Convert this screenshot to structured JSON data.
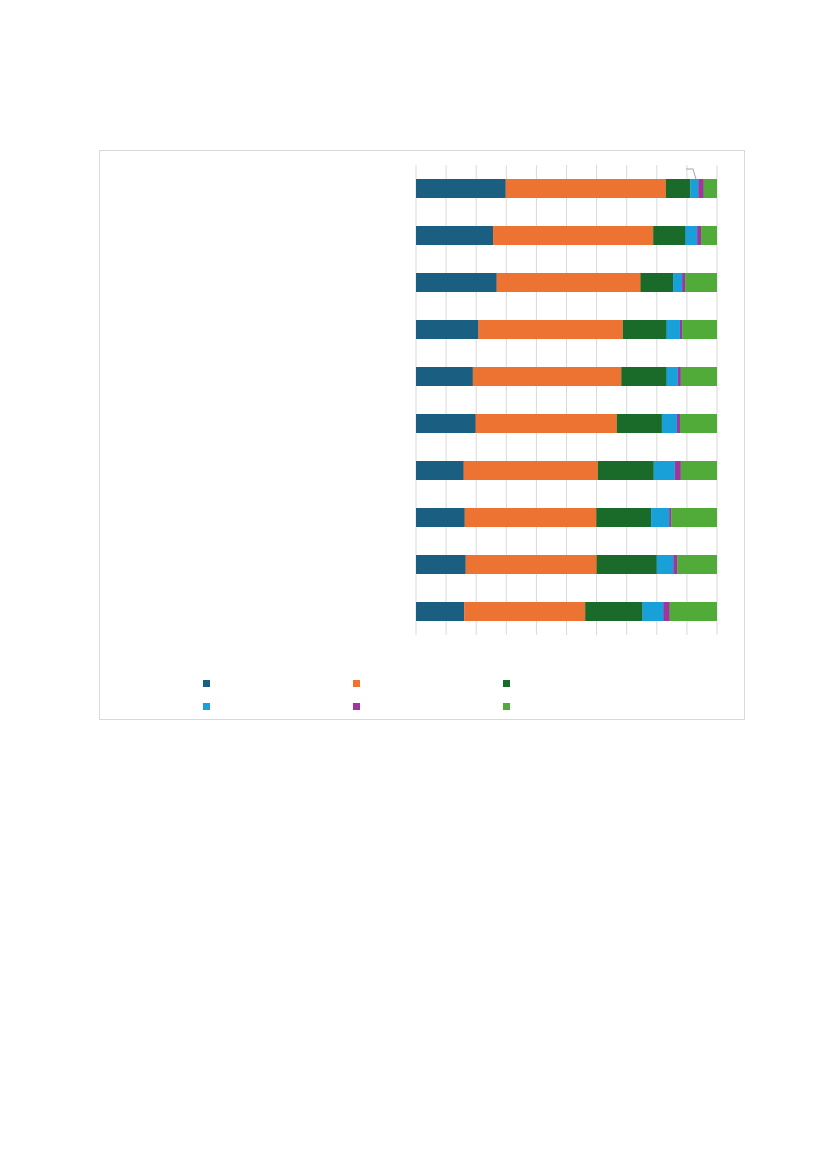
{
  "chart_data": {
    "type": "bar",
    "orientation": "horizontal",
    "stacked": true,
    "normalized": true,
    "title": "",
    "xlabel": "",
    "ylabel": "",
    "xlim": [
      0,
      1
    ],
    "grid": true,
    "legend_position": "bottom",
    "categories": [
      "",
      "",
      "",
      "",
      "",
      "",
      "",
      "",
      "",
      ""
    ],
    "series": [
      {
        "color": "#1a5e82",
        "values": [
          0.298,
          0.256,
          0.268,
          0.207,
          0.189,
          0.198,
          0.158,
          0.162,
          0.165,
          0.16
        ]
      },
      {
        "color": "#ed7333",
        "values": [
          0.532,
          0.532,
          0.478,
          0.48,
          0.493,
          0.469,
          0.446,
          0.437,
          0.435,
          0.402
        ]
      },
      {
        "color": "#1a6b29",
        "values": [
          0.081,
          0.107,
          0.108,
          0.145,
          0.15,
          0.15,
          0.186,
          0.182,
          0.2,
          0.19
        ]
      },
      {
        "color": "#1aa0d9",
        "values": [
          0.027,
          0.039,
          0.03,
          0.045,
          0.038,
          0.05,
          0.07,
          0.06,
          0.055,
          0.07
        ]
      },
      {
        "color": "#a0359f",
        "values": [
          0.017,
          0.013,
          0.01,
          0.007,
          0.01,
          0.01,
          0.02,
          0.007,
          0.013,
          0.02
        ]
      },
      {
        "color": "#50ab38",
        "values": [
          0.045,
          0.053,
          0.106,
          0.116,
          0.12,
          0.123,
          0.12,
          0.152,
          0.132,
          0.158
        ]
      }
    ]
  }
}
